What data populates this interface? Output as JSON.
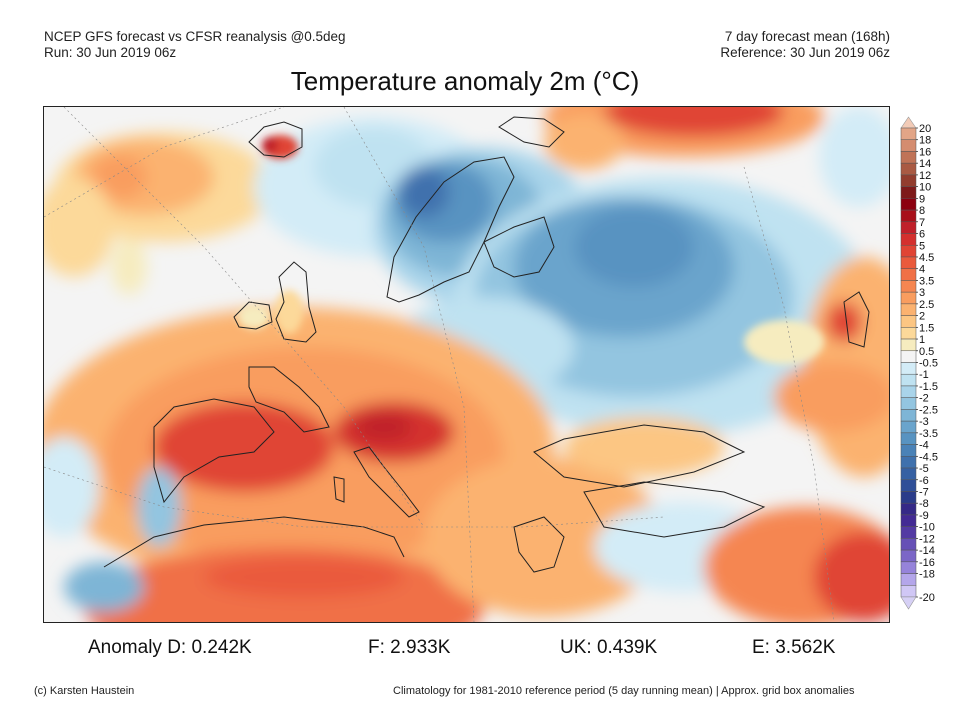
{
  "header": {
    "left_line1": "NCEP GFS forecast vs CFSR reanalysis @0.5deg",
    "left_line2": "Run: 30 Jun 2019 06z",
    "right_line1": "7 day forecast mean (168h)",
    "right_line2": "Reference: 30 Jun 2019 06z"
  },
  "title": "Temperature anomaly 2m (°C)",
  "map": {
    "region": "Europe, North Atlantic, North Africa, Middle East",
    "variable": "2m temperature anomaly",
    "units": "°C",
    "features": [
      {
        "name": "Scandinavia cold anomaly",
        "anomaly": -4,
        "color": "#4f86bd"
      },
      {
        "name": "Western Russia cold anomaly",
        "anomaly": -3.5,
        "color": "#5f95c6"
      },
      {
        "name": "Spain/France heat",
        "anomaly": 6,
        "color": "#d93a2a"
      },
      {
        "name": "Alps heat",
        "anomaly": 7,
        "color": "#c32224"
      },
      {
        "name": "Mediterranean warm",
        "anomaly": 3,
        "color": "#f48a4e"
      },
      {
        "name": "Arctic Russia (Kara/Barents) heat",
        "anomaly": 6,
        "color": "#d93a2a"
      },
      {
        "name": "North Atlantic warm patch",
        "anomaly": 2.5,
        "color": "#fba866"
      },
      {
        "name": "Iceland warm",
        "anomaly": 5,
        "color": "#e55538"
      },
      {
        "name": "Portugal/Morocco coast cool",
        "anomaly": -2.5,
        "color": "#8bc0dc"
      },
      {
        "name": "Turkey mixed",
        "anomaly": -1,
        "color": "#cde8f3"
      },
      {
        "name": "Caspian/Middle East warm",
        "anomaly": 3.5,
        "color": "#f47c44"
      }
    ]
  },
  "colorbar": {
    "labels": [
      "20",
      "18",
      "16",
      "14",
      "12",
      "10",
      "9",
      "8",
      "7",
      "6",
      "5",
      "4.5",
      "4",
      "3.5",
      "3",
      "2.5",
      "2",
      "1.5",
      "1",
      "0.5",
      "-0.5",
      "-1",
      "-1.5",
      "-2",
      "-2.5",
      "-3",
      "-3.5",
      "-4",
      "-4.5",
      "-5",
      "-6",
      "-7",
      "-8",
      "-9",
      "-10",
      "-12",
      "-14",
      "-16",
      "-18",
      "-20"
    ],
    "colors": [
      "#efc0a9",
      "#e2a587",
      "#d48c6f",
      "#c07357",
      "#a95a43",
      "#923d2e",
      "#7e1a1a",
      "#8c0010",
      "#a8101a",
      "#c0202a",
      "#d4302e",
      "#e04434",
      "#ea5a3c",
      "#f07046",
      "#f58651",
      "#f99d5f",
      "#fbb270",
      "#fcc683",
      "#fcd99a",
      "#f6ecbf",
      "#f4f4f4",
      "#d3ecf7",
      "#bfe2f1",
      "#a9d4ea",
      "#93c5e0",
      "#7eb5d6",
      "#6aa4cc",
      "#5893c1",
      "#4a82b7",
      "#3f71ad",
      "#3661a3",
      "#2f4f98",
      "#2a3c8a",
      "#352987",
      "#432a94",
      "#533aa3",
      "#6650b6",
      "#7b66c7",
      "#9683da",
      "#b4a6ea",
      "#d0c7f5"
    ],
    "top_cap_color": "#f2cbb7",
    "bottom_cap_color": "#d6d0f5"
  },
  "stats": [
    {
      "label": "Anomaly D: 0.242K"
    },
    {
      "label": "F: 2.933K"
    },
    {
      "label": "UK: 0.439K"
    },
    {
      "label": "E: 3.562K"
    }
  ],
  "footer": {
    "left": "(c) Karsten Haustein",
    "right": "Climatology for 1981-2010 reference period (5 day running mean) | Approx. grid box anomalies"
  }
}
